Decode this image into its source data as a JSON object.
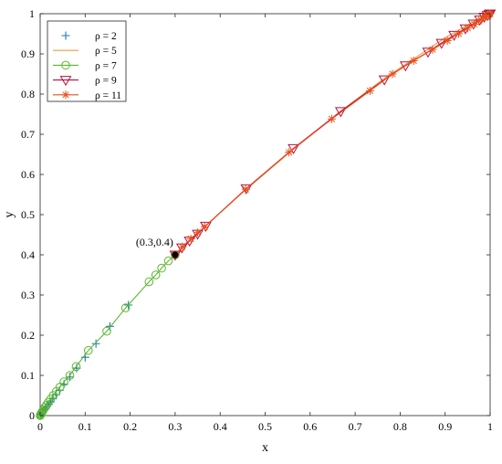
{
  "chart_data": {
    "type": "line",
    "xlabel": "x",
    "ylabel": "y",
    "xlim": [
      0,
      1
    ],
    "ylim": [
      0,
      1
    ],
    "xticks": [
      "0",
      "0.1",
      "0.2",
      "0.3",
      "0.4",
      "0.5",
      "0.6",
      "0.7",
      "0.8",
      "0.9",
      "1"
    ],
    "yticks": [
      "0",
      "0.1",
      "0.2",
      "0.3",
      "0.4",
      "0.5",
      "0.6",
      "0.7",
      "0.8",
      "0.9",
      "1"
    ],
    "grid": false,
    "legend_position": "top-left",
    "annotation": {
      "text": "(0.3,0.4)",
      "x": 0.3,
      "y": 0.4
    },
    "series": [
      {
        "name": "ρ = 2",
        "color": "#1f77b4",
        "marker": "plus",
        "line": false,
        "points": [
          [
            0.3,
            0.4
          ],
          [
            0.196,
            0.275
          ],
          [
            0.155,
            0.222
          ],
          [
            0.124,
            0.179
          ],
          [
            0.1,
            0.145
          ],
          [
            0.081,
            0.118
          ],
          [
            0.066,
            0.096
          ],
          [
            0.053,
            0.078
          ],
          [
            0.043,
            0.063
          ],
          [
            0.035,
            0.052
          ],
          [
            0.028,
            0.042
          ],
          [
            0.023,
            0.034
          ],
          [
            0.019,
            0.028
          ],
          [
            0.015,
            0.023
          ],
          [
            0.012,
            0.018
          ],
          [
            0.01,
            0.015
          ],
          [
            0.008,
            0.012
          ],
          [
            0.006,
            0.01
          ],
          [
            0.004,
            0.007
          ],
          [
            0.003,
            0.005
          ],
          [
            0.002,
            0.003
          ],
          [
            0.001,
            0.002
          ]
        ]
      },
      {
        "name": "ρ = 5",
        "color": "#f39c3c",
        "marker": "none",
        "line": true,
        "points": [
          [
            0.3,
            0.4
          ],
          [
            0.37,
            0.475
          ],
          [
            0.46,
            0.565
          ],
          [
            0.56,
            0.66
          ],
          [
            0.665,
            0.755
          ],
          [
            0.76,
            0.835
          ],
          [
            0.84,
            0.895
          ],
          [
            0.9,
            0.94
          ],
          [
            0.94,
            0.965
          ],
          [
            0.97,
            0.985
          ],
          [
            0.99,
            0.995
          ],
          [
            1.0,
            1.0
          ]
        ]
      },
      {
        "name": "ρ = 7",
        "color": "#5cb82e",
        "marker": "circle",
        "line": true,
        "points": [
          [
            0.3,
            0.4
          ],
          [
            0.285,
            0.385
          ],
          [
            0.27,
            0.367
          ],
          [
            0.257,
            0.35
          ],
          [
            0.242,
            0.333
          ],
          [
            0.19,
            0.268
          ],
          [
            0.148,
            0.21
          ],
          [
            0.107,
            0.162
          ],
          [
            0.08,
            0.122
          ],
          [
            0.066,
            0.1
          ],
          [
            0.053,
            0.084
          ],
          [
            0.044,
            0.071
          ],
          [
            0.036,
            0.06
          ],
          [
            0.029,
            0.05
          ],
          [
            0.023,
            0.041
          ],
          [
            0.018,
            0.033
          ],
          [
            0.014,
            0.026
          ],
          [
            0.01,
            0.02
          ],
          [
            0.007,
            0.014
          ],
          [
            0.005,
            0.01
          ],
          [
            0.003,
            0.007
          ],
          [
            0.002,
            0.004
          ],
          [
            0.001,
            0.002
          ],
          [
            0.0,
            0.0
          ]
        ]
      },
      {
        "name": "ρ = 9",
        "color": "#b5123f",
        "marker": "triangle-down",
        "line": true,
        "points": [
          [
            0.3,
            0.4
          ],
          [
            0.315,
            0.418
          ],
          [
            0.332,
            0.435
          ],
          [
            0.35,
            0.452
          ],
          [
            0.368,
            0.472
          ],
          [
            0.458,
            0.565
          ],
          [
            0.563,
            0.665
          ],
          [
            0.668,
            0.757
          ],
          [
            0.765,
            0.836
          ],
          [
            0.812,
            0.871
          ],
          [
            0.862,
            0.905
          ],
          [
            0.892,
            0.927
          ],
          [
            0.92,
            0.947
          ],
          [
            0.945,
            0.963
          ],
          [
            0.963,
            0.975
          ],
          [
            0.977,
            0.985
          ],
          [
            0.987,
            0.992
          ],
          [
            0.994,
            0.996
          ],
          [
            0.998,
            0.999
          ],
          [
            1.0,
            1.0
          ]
        ]
      },
      {
        "name": "ρ = 11",
        "color": "#e8501c",
        "marker": "asterisk",
        "line": true,
        "points": [
          [
            0.3,
            0.4
          ],
          [
            0.316,
            0.42
          ],
          [
            0.335,
            0.44
          ],
          [
            0.35,
            0.455
          ],
          [
            0.366,
            0.47
          ],
          [
            0.457,
            0.563
          ],
          [
            0.553,
            0.655
          ],
          [
            0.648,
            0.738
          ],
          [
            0.733,
            0.808
          ],
          [
            0.783,
            0.85
          ],
          [
            0.83,
            0.883
          ],
          [
            0.872,
            0.911
          ],
          [
            0.905,
            0.933
          ],
          [
            0.93,
            0.95
          ],
          [
            0.95,
            0.964
          ],
          [
            0.965,
            0.974
          ],
          [
            0.975,
            0.982
          ],
          [
            0.983,
            0.988
          ],
          [
            0.989,
            0.992
          ],
          [
            0.993,
            0.995
          ],
          [
            0.996,
            0.997
          ],
          [
            0.998,
            0.999
          ],
          [
            1.0,
            1.0
          ]
        ]
      }
    ]
  }
}
